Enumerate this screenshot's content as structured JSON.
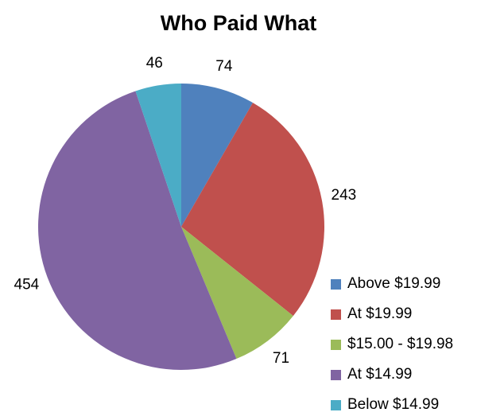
{
  "chart_data": {
    "type": "pie",
    "title": "Who Paid What",
    "categories": [
      "Above $19.99",
      "At $19.99",
      "$15.00 - $19.98",
      "At $14.99",
      "Below $14.99"
    ],
    "values": [
      74,
      243,
      71,
      454,
      46
    ],
    "colors": [
      "#4F81BD",
      "#C0504D",
      "#9BBB59",
      "#8064A2",
      "#4BACC6"
    ],
    "start_angle_deg": 0,
    "direction": "clockwise",
    "data_labels": true,
    "legend": "bottom-right"
  }
}
